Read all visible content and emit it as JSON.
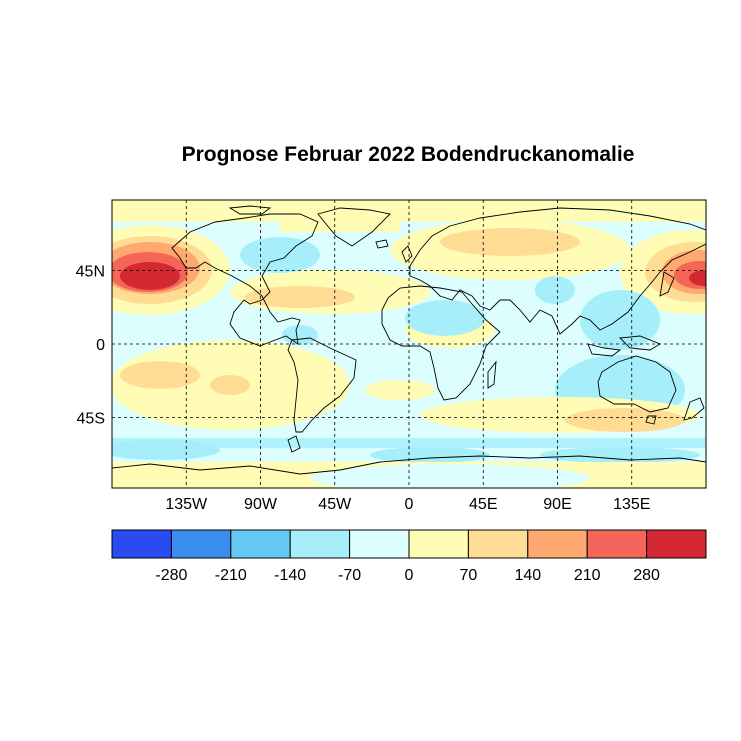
{
  "title": "Prognose Februar 2022 Bodendruckanomalie",
  "map": {
    "lon_range": [
      -180,
      180
    ],
    "lat_range": [
      -88,
      88
    ],
    "lon_ticks": [
      {
        "value": -135,
        "label": "135W"
      },
      {
        "value": -90,
        "label": "90W"
      },
      {
        "value": -45,
        "label": "45W"
      },
      {
        "value": 0,
        "label": "0"
      },
      {
        "value": 45,
        "label": "45E"
      },
      {
        "value": 90,
        "label": "90E"
      },
      {
        "value": 135,
        "label": "135E"
      }
    ],
    "lat_ticks": [
      {
        "value": 45,
        "label": "45N"
      },
      {
        "value": 0,
        "label": "0"
      },
      {
        "value": -45,
        "label": "45S"
      }
    ],
    "grid": "dashed"
  },
  "colorbar": {
    "boundaries": [
      -350,
      -280,
      -210,
      -140,
      -70,
      0,
      70,
      140,
      210,
      280,
      350
    ],
    "labels": [
      "-280",
      "-210",
      "-140",
      "-70",
      "0",
      "70",
      "140",
      "210",
      "280"
    ],
    "colors": [
      "#2a4bf2",
      "#3c8df0",
      "#66c8f5",
      "#a6eefa",
      "#dcfefe",
      "#fffdb5",
      "#fedc94",
      "#fda96f",
      "#f36658",
      "#d42832"
    ]
  }
}
